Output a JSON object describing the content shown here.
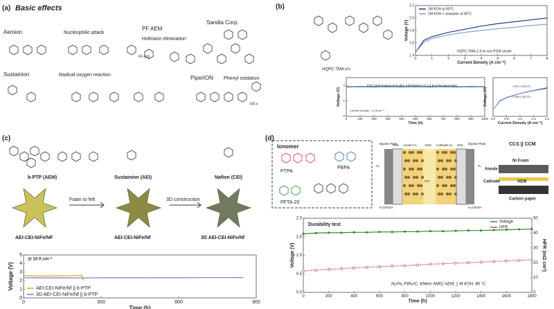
{
  "panels": {
    "a": {
      "label": "(a)",
      "title": "Basic effects",
      "aemion": "Aemion",
      "nucleophilic": "Nucleophilic attack",
      "pf_aem": "PF AEM",
      "hofmann": "Hofmann elimination",
      "sandia": "Sandia Corp.",
      "sustainion": "Sustainion",
      "radical": "Radical oxygen reaction",
      "piperion": "PiperION",
      "phenyl": "Phenyl oxidation",
      "pf800": "PF-800",
      "repeat": "100-x"
    },
    "b": {
      "label": "(b)",
      "molecule": "HQPC-TMA-x's",
      "polarization": {
        "type": "line",
        "caption": "HQPC-TMA-2.4 at non-PGM anode",
        "xlabel": "Current Density (A cm⁻²)",
        "ylabel": "Voltage (V)",
        "x": [
          0,
          0.5,
          1,
          2,
          3,
          4,
          5,
          6,
          7,
          8
        ],
        "xlim": [
          0,
          8
        ],
        "ylim": [
          1.4,
          2.2
        ],
        "xticks": [
          0,
          1,
          2,
          3,
          4,
          5,
          6,
          7,
          8
        ],
        "yticks": [
          1.4,
          1.6,
          1.8,
          {
            "value": 2,
            "label": "2.0"
          },
          2.2
        ],
        "legend": "upper left",
        "series": [
          {
            "name": "1M KOH at 80°C",
            "color": "#1f3a8a",
            "values": [
              1.45,
              1.64,
              1.7,
              1.77,
              1.82,
              1.87,
              1.91,
              1.94,
              1.97,
              2.0
            ]
          },
          {
            "name": "1M KOH + seawater at 80°C",
            "color": "#7f9fd0",
            "values": [
              1.45,
              1.61,
              1.67,
              1.73,
              1.77,
              1.8,
              1.83,
              1.85,
              1.88,
              1.9
            ]
          }
        ]
      },
      "durability": {
        "type": "line",
        "title": "EOT performance test after refreshment of 1.0 M KOH electrolyte",
        "annotation": "Current Density : 1.0 A cm⁻²",
        "xlabel": "Time (h)",
        "ylabel": "Voltage (V)",
        "x": [
          0,
          50,
          100,
          150,
          200,
          250,
          300,
          350,
          400,
          450,
          500,
          550,
          600,
          650,
          700,
          750,
          800,
          850,
          900,
          950,
          1000
        ],
        "xlim": [
          0,
          1000
        ],
        "ylim": [
          0,
          2.5
        ],
        "xticks": [
          0,
          100,
          200,
          300,
          400,
          500,
          600,
          700,
          800,
          900,
          1000
        ],
        "yticks": [
          0,
          1,
          2
        ],
        "series": [
          {
            "color": "#1f4fa0",
            "values": [
              1.9,
              1.91,
              1.92,
              1.91,
              1.9,
              1.91,
              1.92,
              1.91,
              1.9,
              1.91,
              1.92,
              1.91,
              1.9,
              1.91,
              1.92,
              1.91,
              1.9,
              1.91,
              1.92,
              1.91,
              1.91
            ]
          }
        ]
      },
      "zoom": {
        "type": "line",
        "xlabel": "Current Density (A cm⁻²)",
        "ylabel": "Voltage (V)",
        "ann1": "1.912 V (EOT)",
        "ann2": "1.906 V (EOT)",
        "x": [
          0,
          0.25,
          0.5,
          1,
          1.5,
          2
        ],
        "xlim": [
          0,
          2
        ],
        "ylim": [
          1.2,
          2.4
        ],
        "xticks": [
          {
            "value": 0,
            "label": "0.0"
          },
          0.5,
          {
            "value": 1,
            "label": "1.0"
          },
          1.5,
          {
            "value": 2,
            "label": "2.0"
          }
        ],
        "series": [
          {
            "color": "#1f3a8a",
            "values": [
              1.4,
              1.68,
              1.78,
              1.912,
              2.0,
              2.08
            ]
          },
          {
            "color": "#9ab0d8",
            "values": [
              1.4,
              1.67,
              1.77,
              1.906,
              1.99,
              2.06
            ]
          }
        ]
      }
    },
    "c": {
      "label": "(c)",
      "bptp": "b-PTP (AEM)",
      "sust": "Sustainion (AEI)",
      "nafion": "Nafion (CEI)",
      "e1": "AEI-CEI-NiFe/NF",
      "step1": "Foam to felt",
      "e2": "AEI-CEI-NiFe/Nf",
      "step2": "3D construction",
      "e3": "3D AEI-CEI-NiFe/Nf",
      "chart": {
        "type": "line",
        "annotation": "@ 10 A cm⁻²",
        "xlabel": "Time (h)",
        "ylabel": "Voltage (V)",
        "xlim": [
          0,
          900
        ],
        "ylim": [
          0,
          5
        ],
        "xticks": [
          0,
          300,
          600,
          900
        ],
        "yticks": [
          0,
          1,
          2,
          3,
          4,
          5
        ],
        "legend": "lower left",
        "series": [
          {
            "name": "AEI-CEI-NiFe/Nf || b-PTP",
            "color": "#c8b000",
            "x": [
              0,
              50,
              100,
              150,
              200,
              225,
              232
            ],
            "values": [
              2.6,
              2.55,
              2.55,
              2.57,
              2.6,
              2.65,
              2.0
            ]
          },
          {
            "name": "3D AEI-CEI-NiFe/Nf || b-PTP",
            "color": "#8a6fcf",
            "x": [
              0,
              100,
              200,
              300,
              400,
              500,
              600,
              700,
              800,
              850
            ],
            "values": [
              2.35,
              2.33,
              2.33,
              2.34,
              2.34,
              2.35,
              2.35,
              2.36,
              2.36,
              2.37
            ]
          }
        ]
      }
    },
    "d": {
      "label": "(d)",
      "ionomer": "Ionomer",
      "ptpa": "PTPA",
      "pbpa": "PBPA",
      "pfta": "PFTA-20",
      "cell": [
        "Bipolar Plate",
        "GDL",
        "Anode CL",
        "AEM",
        "Cathode CL",
        "GDL",
        "Bipolar Plate",
        "O₂",
        "H₂",
        "H₂O/KOH",
        "H₂O/KOH",
        "OH⁻"
      ],
      "stack": [
        "CCS || CCM",
        "Anode",
        "Ni Foam",
        "Cathode",
        "AEM",
        "Carbon paper"
      ],
      "chart": {
        "type": "line",
        "title": "Durability test",
        "caption": "Ni₂Fe₁ PtRu/C, KMem AM01 AEM, 1 M KOH, 80 °C",
        "xlabel": "Time (h)",
        "ylabel": "Voltage (V)",
        "y2label": "HFR (mΩ cm²)",
        "x": [
          0,
          100,
          200,
          300,
          400,
          500,
          600,
          700,
          800,
          900,
          1000,
          1100,
          1200,
          1300,
          1400,
          1500,
          1600,
          1700,
          1800
        ],
        "xlim": [
          0,
          1800
        ],
        "ylim": [
          0,
          2
        ],
        "y2lim": [
          0,
          50
        ],
        "xticks": [
          0,
          200,
          400,
          600,
          800,
          1000,
          1200,
          1400,
          1600,
          1800
        ],
        "yticks": [
          {
            "value": 0,
            "label": "0.0"
          },
          0.5,
          {
            "value": 1,
            "label": "1.0"
          },
          1.5,
          {
            "value": 2,
            "label": "2.0"
          }
        ],
        "y2ticks": [
          0,
          10,
          20,
          30,
          40,
          50
        ],
        "legend": "upper right",
        "series": [
          {
            "name": "Voltage",
            "color": "#2a8a2a",
            "marker": "square",
            "values": [
              1.58,
              1.6,
              1.61,
              1.61,
              1.62,
              1.62,
              1.63,
              1.63,
              1.64,
              1.64,
              1.65,
              1.65,
              1.66,
              1.67,
              1.67,
              1.68,
              1.69,
              1.7,
              1.71
            ]
          },
          {
            "name": "HFR",
            "color": "#c05050",
            "axis": "y2",
            "marker": "circle",
            "values": [
              14.5,
              15,
              15.5,
              16,
              16.5,
              17,
              17.3,
              17.7,
              18,
              18.5,
              19,
              19.3,
              19.7,
              20,
              20.4,
              20.8,
              21.2,
              21.6,
              22
            ]
          }
        ]
      }
    }
  }
}
